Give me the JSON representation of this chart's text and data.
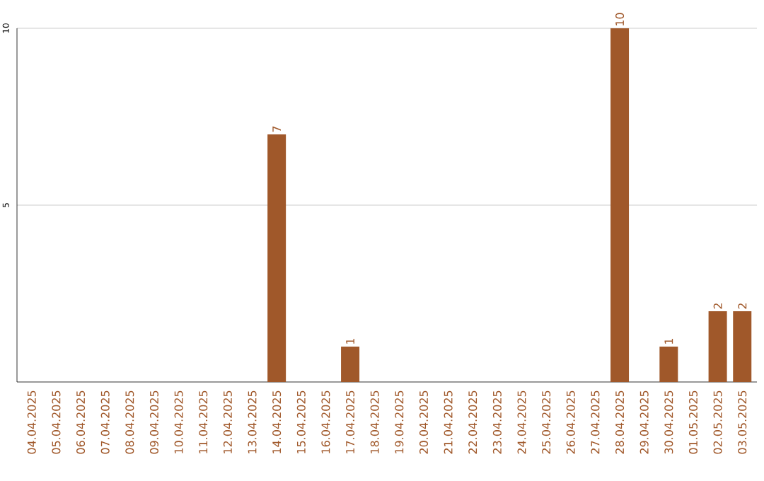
{
  "chart_data": {
    "type": "bar",
    "categories": [
      "04.04.2025",
      "05.04.2025",
      "06.04.2025",
      "07.04.2025",
      "08.04.2025",
      "09.04.2025",
      "10.04.2025",
      "11.04.2025",
      "12.04.2025",
      "13.04.2025",
      "14.04.2025",
      "15.04.2025",
      "16.04.2025",
      "17.04.2025",
      "18.04.2025",
      "19.04.2025",
      "20.04.2025",
      "21.04.2025",
      "22.04.2025",
      "23.04.2025",
      "24.04.2025",
      "25.04.2025",
      "26.04.2025",
      "27.04.2025",
      "28.04.2025",
      "29.04.2025",
      "30.04.2025",
      "01.05.2025",
      "02.05.2025",
      "03.05.2025"
    ],
    "values": [
      0,
      0,
      0,
      0,
      0,
      0,
      0,
      0,
      0,
      0,
      7,
      0,
      0,
      1,
      0,
      0,
      0,
      0,
      0,
      0,
      0,
      0,
      0,
      0,
      10,
      0,
      1,
      0,
      2,
      2
    ],
    "value_labels": [
      null,
      null,
      null,
      null,
      null,
      null,
      null,
      null,
      null,
      null,
      "7",
      null,
      null,
      "1",
      null,
      null,
      null,
      null,
      null,
      null,
      null,
      null,
      null,
      null,
      "10",
      null,
      "1",
      null,
      "2",
      "2"
    ],
    "color": "#a0582a",
    "ylim": [
      0,
      10
    ],
    "yticks": [
      5,
      10
    ],
    "grid": "y"
  }
}
